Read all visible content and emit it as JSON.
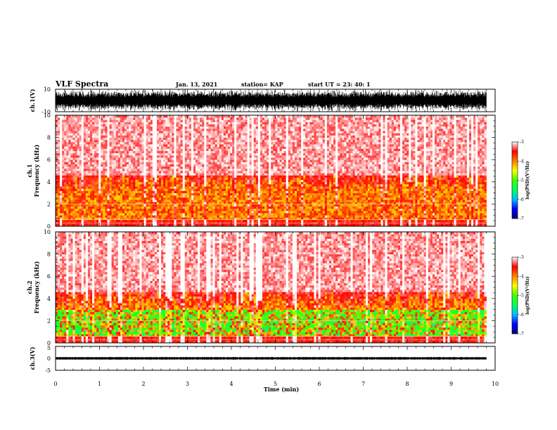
{
  "header": {
    "title": "VLF Spectra",
    "date": "Jan. 13, 2021",
    "station": "station= KAP",
    "start": "start  UT  =  23: 40: 1"
  },
  "chart_data": [
    {
      "type": "line",
      "name": "ch1-waveform",
      "ylabel": "ch.1(V)",
      "ylim": [
        -10,
        10
      ],
      "yticks": [
        "10",
        "-10"
      ],
      "xlim": [
        0,
        10
      ],
      "data_end_min": 9.8
    },
    {
      "type": "heatmap",
      "name": "ch1-spectrogram",
      "ylabel": "ch.1\nFrequency (kHz)",
      "ylim": [
        0,
        10
      ],
      "yticks": [
        "10",
        "8",
        "6",
        "4",
        "2",
        "0"
      ],
      "xlim": [
        0,
        10
      ],
      "data_end_min": 9.8,
      "colorbar": {
        "label": "log(PSD)(V²/Hz)",
        "range": [
          -7,
          -3
        ],
        "ticks": [
          "-3",
          "-4",
          "-5",
          "-6",
          "-7"
        ]
      }
    },
    {
      "type": "heatmap",
      "name": "ch2-spectrogram",
      "ylabel": "ch.2\nFrequency (kHz)",
      "ylim": [
        0,
        10
      ],
      "yticks": [
        "10",
        "8",
        "6",
        "4",
        "2",
        "0"
      ],
      "xlim": [
        0,
        10
      ],
      "data_end_min": 9.8,
      "colorbar": {
        "label": "log(PSD)(V²/Hz)",
        "range": [
          -7,
          -3
        ],
        "ticks": [
          "-3",
          "-4",
          "-5",
          "-6",
          "-7"
        ]
      }
    },
    {
      "type": "line",
      "name": "ch3-waveform",
      "ylabel": "ch.3(V)",
      "ylim": [
        -5,
        5
      ],
      "yticks": [
        "5",
        "0",
        "-5"
      ],
      "xlim": [
        0,
        10
      ],
      "data_end_min": 9.8,
      "xlabel": "Time (min)",
      "xticks": [
        "0",
        "1",
        "2",
        "3",
        "4",
        "5",
        "6",
        "7",
        "8",
        "9",
        "10"
      ]
    }
  ],
  "colors": {
    "colormap": [
      "#000070",
      "#0000ff",
      "#00c0ff",
      "#00ff60",
      "#40ff00",
      "#ffff00",
      "#ff8000",
      "#ff0000",
      "#ffffff"
    ]
  }
}
